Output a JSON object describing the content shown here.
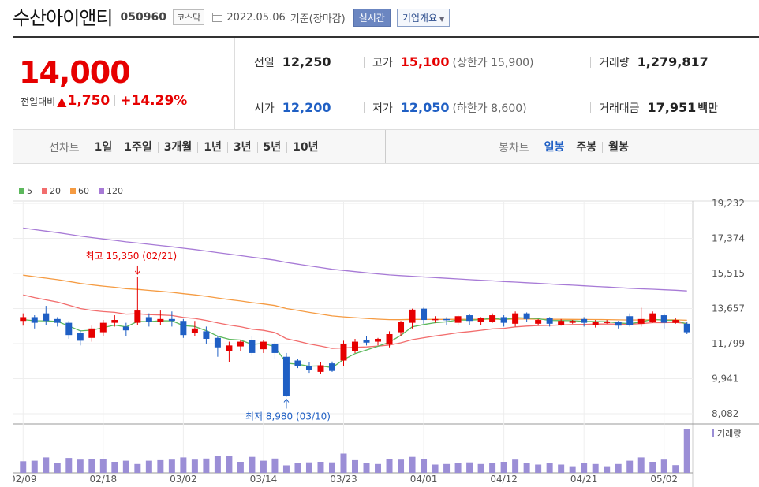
{
  "header": {
    "name": "수산아이앤티",
    "code": "050960",
    "market": "코스닥",
    "date": "2022.05.06",
    "basis": "기준(장마감)",
    "realtime_label": "실시간",
    "corp_label": "기업개요"
  },
  "price": {
    "current": "14,000",
    "change_label": "전일대비",
    "change_amount": "1,750",
    "change_pct": "+14.29%"
  },
  "stats": {
    "prev_label": "전일",
    "prev": "12,250",
    "high_label": "고가",
    "high": "15,100",
    "upper_limit": "(상한가 15,900)",
    "volume_label": "거래량",
    "volume": "1,279,817",
    "open_label": "시가",
    "open": "12,200",
    "low_label": "저가",
    "low": "12,050",
    "lower_limit": "(하한가 8,600)",
    "amount_label": "거래대금",
    "amount": "17,951",
    "amount_unit": "백만"
  },
  "tabs": {
    "line_title": "선차트",
    "line_items": [
      "1일",
      "1주일",
      "3개월",
      "1년",
      "3년",
      "5년",
      "10년"
    ],
    "candle_title": "봉차트",
    "candle_items": [
      "일봉",
      "주봉",
      "월봉"
    ],
    "candle_selected": 0
  },
  "colors": {
    "up": "#e60000",
    "down": "#1f5fc4",
    "ma5": "#5cb85c",
    "ma20": "#f26d6d",
    "ma60": "#f59b42",
    "ma120": "#a77ad6",
    "volume": "#9b8ed6"
  },
  "chart_data": {
    "type": "candlestick",
    "legend": [
      "5",
      "20",
      "60",
      "120"
    ],
    "y_ticks": [
      "19,232",
      "17,374",
      "15,515",
      "13,657",
      "11,799",
      "9,941",
      "8,082"
    ],
    "ylim": [
      8082,
      19232
    ],
    "x_ticks": [
      {
        "label": "02/09",
        "i": 0
      },
      {
        "label": "02/18",
        "i": 7
      },
      {
        "label": "03/02",
        "i": 14
      },
      {
        "label": "03/14",
        "i": 21
      },
      {
        "label": "03/23",
        "i": 28
      },
      {
        "label": "04/01",
        "i": 35
      },
      {
        "label": "04/12",
        "i": 42
      },
      {
        "label": "04/21",
        "i": 49
      },
      {
        "label": "05/02",
        "i": 56
      }
    ],
    "annotation_high": "최고 15,350 (02/21)",
    "annotation_low": "최저 8,980 (03/10)",
    "volume_label": "거래량",
    "candles": [
      [
        13000,
        13200,
        12750,
        13400
      ],
      [
        13200,
        12900,
        12600,
        13300
      ],
      [
        13400,
        13000,
        12800,
        13800
      ],
      [
        13100,
        12900,
        12700,
        13200
      ],
      [
        12900,
        12250,
        12050,
        13000
      ],
      [
        12350,
        11950,
        11700,
        12500
      ],
      [
        12100,
        12600,
        11900,
        12750
      ],
      [
        12400,
        12900,
        12200,
        13050
      ],
      [
        12900,
        13050,
        12700,
        13300
      ],
      [
        12700,
        12500,
        12200,
        12900
      ],
      [
        12900,
        13550,
        12800,
        15350
      ],
      [
        13200,
        12950,
        12700,
        13400
      ],
      [
        12950,
        13100,
        12800,
        13550
      ],
      [
        13100,
        13000,
        12700,
        13500
      ],
      [
        13000,
        12250,
        12100,
        13100
      ],
      [
        12350,
        12600,
        12200,
        13000
      ],
      [
        12450,
        12050,
        11800,
        12700
      ],
      [
        12100,
        11600,
        11100,
        12200
      ],
      [
        11400,
        11700,
        10800,
        11900
      ],
      [
        11650,
        11900,
        11400,
        12000
      ],
      [
        12000,
        11300,
        11150,
        12200
      ],
      [
        11500,
        11900,
        11300,
        12000
      ],
      [
        11800,
        11300,
        11000,
        11900
      ],
      [
        11100,
        9000,
        8980,
        11300
      ],
      [
        10900,
        10600,
        10500,
        11000
      ],
      [
        10600,
        10400,
        10250,
        10800
      ],
      [
        10300,
        10650,
        10200,
        10800
      ],
      [
        10750,
        10350,
        10300,
        10850
      ],
      [
        10900,
        11800,
        10600,
        11950
      ],
      [
        11400,
        11900,
        11300,
        12050
      ],
      [
        12000,
        11850,
        11700,
        12200
      ],
      [
        11900,
        12050,
        11700,
        12100
      ],
      [
        11750,
        12300,
        11600,
        12450
      ],
      [
        12400,
        12950,
        12200,
        13000
      ],
      [
        12900,
        13600,
        12600,
        13650
      ],
      [
        13650,
        13050,
        12850,
        13700
      ],
      [
        13050,
        13100,
        12900,
        13250
      ],
      [
        13100,
        13050,
        12800,
        13200
      ],
      [
        12900,
        13250,
        12800,
        13300
      ],
      [
        13300,
        13000,
        12800,
        13350
      ],
      [
        12950,
        13150,
        12800,
        13200
      ],
      [
        12950,
        13300,
        12900,
        13400
      ],
      [
        13200,
        12900,
        12700,
        13300
      ],
      [
        12850,
        13400,
        12700,
        13500
      ],
      [
        13400,
        13100,
        12950,
        13450
      ],
      [
        12850,
        13050,
        12750,
        13100
      ],
      [
        13150,
        12850,
        12700,
        13200
      ],
      [
        12800,
        13000,
        12750,
        13100
      ],
      [
        12900,
        13000,
        12850,
        13050
      ],
      [
        13100,
        12900,
        12700,
        13200
      ],
      [
        12800,
        12950,
        12650,
        13050
      ],
      [
        12950,
        12950,
        12850,
        13050
      ],
      [
        12950,
        12750,
        12600,
        13000
      ],
      [
        13250,
        12800,
        12700,
        13400
      ],
      [
        12850,
        13100,
        12700,
        13700
      ],
      [
        12950,
        13400,
        12900,
        13500
      ],
      [
        13300,
        12900,
        12600,
        13400
      ],
      [
        12900,
        13050,
        12850,
        13150
      ],
      [
        12850,
        12400,
        12300,
        12950
      ]
    ]
  }
}
